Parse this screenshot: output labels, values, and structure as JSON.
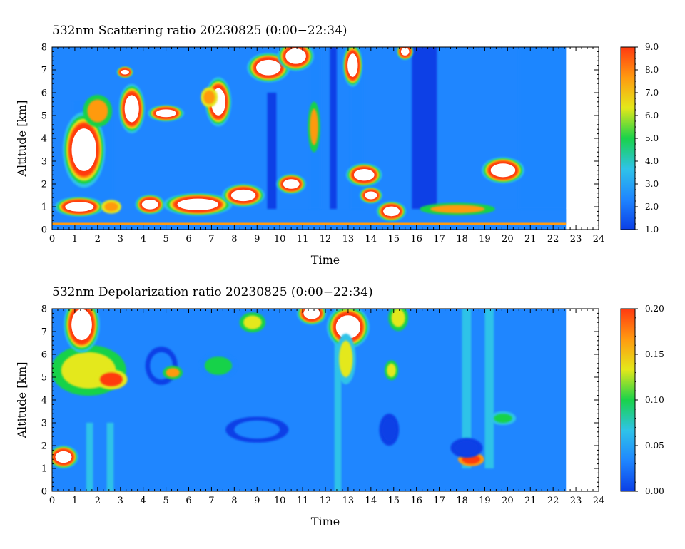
{
  "panels": [
    {
      "title": "532nm Scattering ratio  20230825 (0:00−22:34)",
      "xlabel": "Time",
      "ylabel": "Altitude [km]",
      "xlim": [
        0,
        24
      ],
      "ylim": [
        0,
        8
      ],
      "xticks": [
        "0",
        "1",
        "2",
        "3",
        "4",
        "5",
        "6",
        "7",
        "8",
        "9",
        "10",
        "11",
        "12",
        "13",
        "14",
        "15",
        "16",
        "17",
        "18",
        "19",
        "20",
        "21",
        "22",
        "23",
        "24"
      ],
      "yticks": [
        "0",
        "1",
        "2",
        "3",
        "4",
        "5",
        "6",
        "7",
        "8"
      ],
      "colorbar": {
        "min": 1.0,
        "max": 9.0,
        "ticks": [
          "1.0",
          "2.0",
          "3.0",
          "4.0",
          "5.0",
          "6.0",
          "7.0",
          "8.0",
          "9.0"
        ]
      }
    },
    {
      "title": "532nm Depolarization ratio  20230825 (0:00−22:34)",
      "xlabel": "Time",
      "ylabel": "Altitude [km]",
      "xlim": [
        0,
        24
      ],
      "ylim": [
        0,
        8
      ],
      "xticks": [
        "0",
        "1",
        "2",
        "3",
        "4",
        "5",
        "6",
        "7",
        "8",
        "9",
        "10",
        "11",
        "12",
        "13",
        "14",
        "15",
        "16",
        "17",
        "18",
        "19",
        "20",
        "21",
        "22",
        "23",
        "24"
      ],
      "yticks": [
        "0",
        "1",
        "2",
        "3",
        "4",
        "5",
        "6",
        "7",
        "8"
      ],
      "colorbar": {
        "min": 0.0,
        "max": 0.2,
        "ticks": [
          "0.00",
          "0.05",
          "0.10",
          "0.15",
          "0.20"
        ]
      }
    }
  ],
  "colormap": [
    "#0b3fe6",
    "#1f86ff",
    "#2fc3e8",
    "#19d24a",
    "#e4e81a",
    "#ff9a10",
    "#ff3a10"
  ],
  "chart_data": [
    {
      "type": "heatmap",
      "title": "532nm Scattering ratio  20230825 (0:00−22:34)",
      "xlabel": "Time",
      "ylabel": "Altitude [km]",
      "xlim": [
        0,
        24
      ],
      "ylim": [
        0,
        8
      ],
      "data_end_time": 22.57,
      "colorbar_range": [
        1.0,
        9.0
      ],
      "background": {
        "from": 0,
        "to": 8,
        "value": 1.9
      },
      "columns": [
        {
          "t0": 11.3,
          "t1": 11.8,
          "z0": 0.9,
          "z1": 8,
          "value": 1.9
        },
        {
          "t0": 12.2,
          "t1": 12.5,
          "z0": 0.9,
          "z1": 8,
          "value": 1.6
        },
        {
          "t0": 9.45,
          "t1": 9.85,
          "z0": 0.9,
          "z1": 6.0,
          "value": 1.6
        },
        {
          "t0": 15.8,
          "t1": 16.9,
          "z0": 0.9,
          "z1": 8,
          "value": 1.6
        },
        {
          "t0": 20.5,
          "t1": 22.57,
          "z0": 0.9,
          "z1": 8,
          "value": 1.8
        },
        {
          "t0": 0.9,
          "t1": 2.7,
          "z0": 0.9,
          "z1": 5.6,
          "value": 2.6
        },
        {
          "t0": 13.1,
          "t1": 13.7,
          "z0": 0.9,
          "z1": 8,
          "value": 2.4
        }
      ],
      "features": [
        {
          "t": 1.4,
          "z": 3.5,
          "rt": 0.6,
          "rz": 1.1,
          "value": 9.5
        },
        {
          "t": 2.0,
          "z": 5.2,
          "rt": 0.45,
          "rz": 0.5,
          "value": 7.5
        },
        {
          "t": 3.5,
          "z": 5.3,
          "rt": 0.35,
          "rz": 0.7,
          "value": 9.5
        },
        {
          "t": 1.2,
          "z": 1.0,
          "rt": 0.7,
          "rz": 0.25,
          "value": 9.5
        },
        {
          "t": 2.6,
          "z": 1.0,
          "rt": 0.3,
          "rz": 0.2,
          "value": 8.0
        },
        {
          "t": 4.3,
          "z": 1.1,
          "rt": 0.4,
          "rz": 0.25,
          "value": 9.5
        },
        {
          "t": 5.0,
          "z": 5.1,
          "rt": 0.5,
          "rz": 0.2,
          "value": 9.5
        },
        {
          "t": 6.4,
          "z": 1.1,
          "rt": 1.0,
          "rz": 0.3,
          "value": 9.5
        },
        {
          "t": 7.3,
          "z": 5.6,
          "rt": 0.35,
          "rz": 0.7,
          "value": 9.5
        },
        {
          "t": 8.4,
          "z": 1.5,
          "rt": 0.6,
          "rz": 0.3,
          "value": 9.5
        },
        {
          "t": 9.5,
          "z": 7.1,
          "rt": 0.6,
          "rz": 0.4,
          "value": 9.5
        },
        {
          "t": 10.7,
          "z": 7.6,
          "rt": 0.5,
          "rz": 0.4,
          "value": 9.5
        },
        {
          "t": 11.5,
          "z": 4.5,
          "rt": 0.18,
          "rz": 0.8,
          "value": 7.5
        },
        {
          "t": 13.2,
          "z": 7.2,
          "rt": 0.25,
          "rz": 0.6,
          "value": 9.5
        },
        {
          "t": 13.7,
          "z": 2.4,
          "rt": 0.5,
          "rz": 0.3,
          "value": 9.5
        },
        {
          "t": 14.0,
          "z": 1.5,
          "rt": 0.3,
          "rz": 0.2,
          "value": 9.5
        },
        {
          "t": 14.9,
          "z": 0.8,
          "rt": 0.4,
          "rz": 0.25,
          "value": 9.5
        },
        {
          "t": 17.8,
          "z": 0.9,
          "rt": 1.2,
          "rz": 0.18,
          "value": 7.5
        },
        {
          "t": 19.8,
          "z": 2.6,
          "rt": 0.6,
          "rz": 0.35,
          "value": 9.5
        },
        {
          "t": 10.5,
          "z": 2.0,
          "rt": 0.4,
          "rz": 0.25,
          "value": 9.5
        },
        {
          "t": 3.2,
          "z": 6.9,
          "rt": 0.2,
          "rz": 0.12,
          "value": 9.5
        },
        {
          "t": 6.9,
          "z": 5.8,
          "rt": 0.25,
          "rz": 0.3,
          "value": 8.0
        },
        {
          "t": 15.5,
          "z": 7.8,
          "rt": 0.2,
          "rz": 0.2,
          "value": 9.5
        }
      ],
      "low_band": {
        "z0": 0.25,
        "z1": 0.9,
        "value": 2.0
      },
      "surface_line": {
        "z": 0.25,
        "value": 8.0
      }
    },
    {
      "type": "heatmap",
      "title": "532nm Depolarization ratio  20230825 (0:00−22:34)",
      "xlabel": "Time",
      "ylabel": "Altitude [km]",
      "xlim": [
        0,
        24
      ],
      "ylim": [
        0,
        8
      ],
      "data_end_time": 22.57,
      "colorbar_range": [
        0.0,
        0.2
      ],
      "background": {
        "from": 0,
        "to": 8,
        "value": 0.04
      },
      "columns": [
        {
          "t0": 12.4,
          "t1": 12.7,
          "z0": 0,
          "z1": 8,
          "value": 0.07
        },
        {
          "t0": 18.0,
          "t1": 18.4,
          "z0": 1.0,
          "z1": 8,
          "value": 0.06
        },
        {
          "t0": 19.0,
          "t1": 19.4,
          "z0": 1.0,
          "z1": 8,
          "value": 0.06
        },
        {
          "t0": 1.5,
          "t1": 1.8,
          "z0": 0,
          "z1": 3,
          "value": 0.06
        },
        {
          "t0": 2.4,
          "t1": 2.7,
          "z0": 0,
          "z1": 3,
          "value": 0.06
        }
      ],
      "features": [
        {
          "t": 1.6,
          "z": 5.3,
          "rt": 1.2,
          "rz": 0.8,
          "value": 0.15
        },
        {
          "t": 2.6,
          "z": 4.9,
          "rt": 0.5,
          "rz": 0.3,
          "value": 0.19
        },
        {
          "t": 1.3,
          "z": 7.3,
          "rt": 0.5,
          "rz": 0.8,
          "value": 0.21
        },
        {
          "t": 0.5,
          "z": 1.5,
          "rt": 0.4,
          "rz": 0.3,
          "value": 0.21
        },
        {
          "t": 4.8,
          "z": 5.5,
          "rt": 0.5,
          "rz": 0.6,
          "value": 0.03
        },
        {
          "t": 5.3,
          "z": 5.2,
          "rt": 0.3,
          "rz": 0.2,
          "value": 0.16
        },
        {
          "t": 7.3,
          "z": 5.5,
          "rt": 0.6,
          "rz": 0.4,
          "value": 0.09
        },
        {
          "t": 8.8,
          "z": 7.4,
          "rt": 0.4,
          "rz": 0.3,
          "value": 0.15
        },
        {
          "t": 11.4,
          "z": 7.8,
          "rt": 0.4,
          "rz": 0.3,
          "value": 0.21
        },
        {
          "t": 13.0,
          "z": 7.2,
          "rt": 0.6,
          "rz": 0.6,
          "value": 0.21
        },
        {
          "t": 12.9,
          "z": 5.8,
          "rt": 0.3,
          "rz": 0.8,
          "value": 0.12
        },
        {
          "t": 14.8,
          "z": 2.7,
          "rt": 0.3,
          "rz": 0.5,
          "value": 0.01
        },
        {
          "t": 14.9,
          "z": 5.3,
          "rt": 0.2,
          "rz": 0.3,
          "value": 0.15
        },
        {
          "t": 18.4,
          "z": 1.4,
          "rt": 0.4,
          "rz": 0.2,
          "value": 0.2
        },
        {
          "t": 18.2,
          "z": 1.9,
          "rt": 0.5,
          "rz": 0.3,
          "value": 0.01
        },
        {
          "t": 19.8,
          "z": 3.2,
          "rt": 0.4,
          "rz": 0.2,
          "value": 0.1
        },
        {
          "t": 9.0,
          "z": 2.7,
          "rt": 1.0,
          "rz": 0.4,
          "value": 0.02
        },
        {
          "t": 15.2,
          "z": 7.6,
          "rt": 0.3,
          "rz": 0.4,
          "value": 0.14
        }
      ]
    }
  ]
}
